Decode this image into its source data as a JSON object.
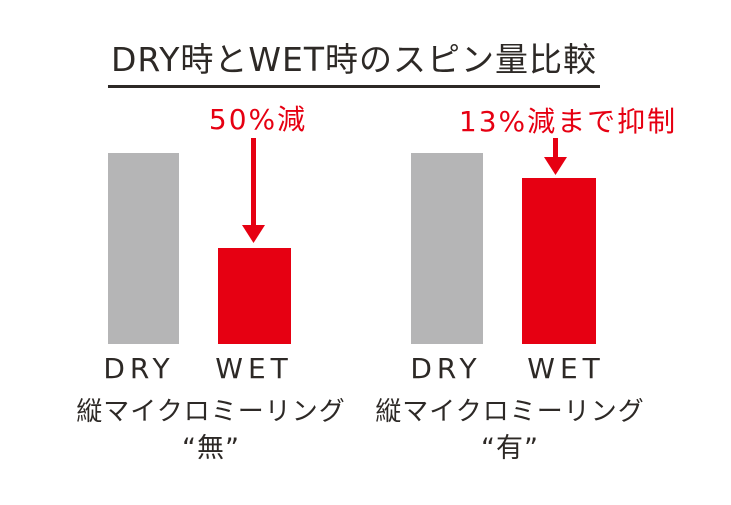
{
  "title": "DRY時とWET時のスピン量比較",
  "colors": {
    "bar_dry": "#b5b5b6",
    "bar_wet": "#e60012",
    "annotation": "#e60012",
    "text": "#2d2926",
    "background": "#ffffff"
  },
  "chart_data": {
    "type": "bar",
    "title": "DRY時とWET時のスピン量比較",
    "categories": [
      "DRY",
      "WET"
    ],
    "ylabel": "",
    "xlabel": "",
    "ylim": [
      0,
      100
    ],
    "grid": false,
    "legend_position": "none",
    "unit": "relative spin amount (DRY = 100)",
    "groups": [
      {
        "caption_line1": "縦マイクロミーリング",
        "caption_line2": "“無”",
        "annotation": "50%減",
        "series": [
          {
            "name": "DRY",
            "value": 100,
            "color": "#b5b5b6"
          },
          {
            "name": "WET",
            "value": 50,
            "color": "#e60012"
          }
        ]
      },
      {
        "caption_line1": "縦マイクロミーリング",
        "caption_line2": "“有”",
        "annotation": "13%減まで抑制",
        "series": [
          {
            "name": "DRY",
            "value": 100,
            "color": "#b5b5b6"
          },
          {
            "name": "WET",
            "value": 87,
            "color": "#e60012"
          }
        ]
      }
    ]
  }
}
